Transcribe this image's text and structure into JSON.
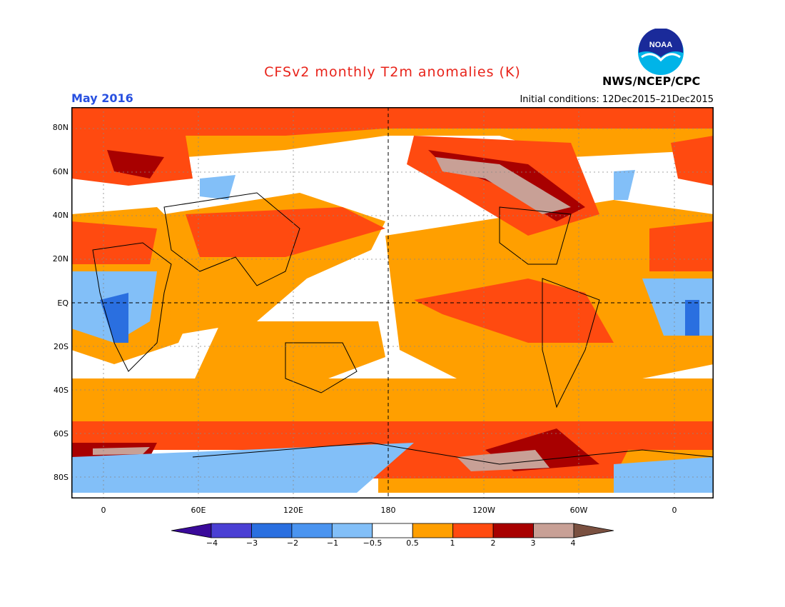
{
  "header": {
    "title": "CFSv2 monthly T2m anomalies (K)",
    "month": "May 2016",
    "initial_conditions": "Initial conditions: 12Dec2015–21Dec2015",
    "agency": "NWS/NCEP/CPC",
    "logo_text": "NOAA"
  },
  "map": {
    "lat_labels": [
      "80N",
      "60N",
      "40N",
      "20N",
      "EQ",
      "20S",
      "40S",
      "60S",
      "80S"
    ],
    "lon_labels": [
      "0",
      "60E",
      "120E",
      "180",
      "120W",
      "60W",
      "0"
    ]
  },
  "colorbar": {
    "labels": [
      "−4",
      "−3",
      "−2",
      "−1",
      "−0.5",
      "0.5",
      "1",
      "2",
      "3",
      "4"
    ],
    "colors": [
      "#3a0a9a",
      "#4a3fd4",
      "#2a6fe0",
      "#4a94f0",
      "#82bff8",
      "#ffffff",
      "#ff9f00",
      "#ff4a10",
      "#a80000",
      "#c8a096",
      "#7a5040"
    ]
  }
}
